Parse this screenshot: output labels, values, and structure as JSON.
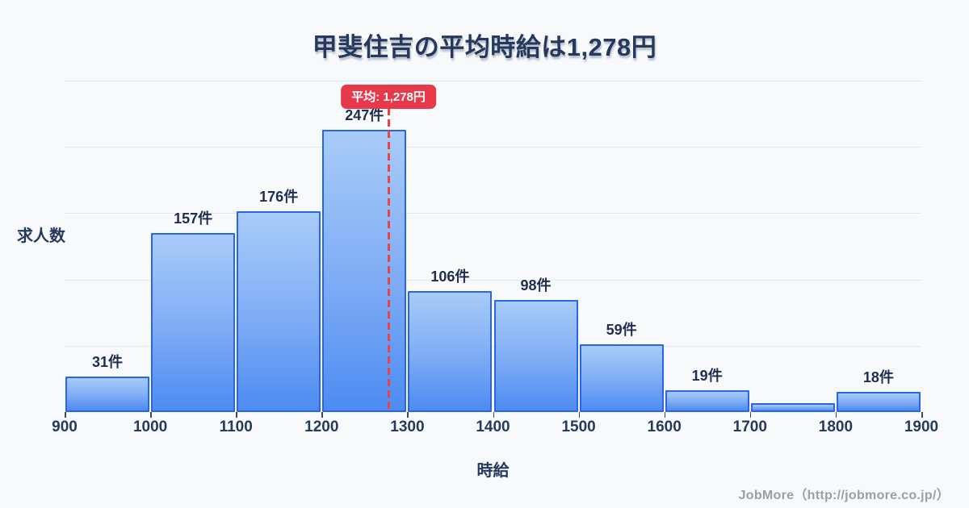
{
  "page": {
    "title": "甲斐住吉の平均時給は1,278円",
    "footer": "JobMore（http://jobmore.co.jp/）"
  },
  "chart_data": {
    "type": "bar",
    "subtype": "histogram",
    "title": "甲斐住吉の平均時給は1,278円",
    "xlabel": "時給",
    "ylabel": "求人数",
    "bin_edges": [
      900,
      1000,
      1100,
      1200,
      1300,
      1400,
      1500,
      1600,
      1700,
      1800,
      1900
    ],
    "x_tick_labels": [
      "900",
      "1000",
      "1100",
      "1200",
      "1300",
      "1400",
      "1500",
      "1600",
      "1700",
      "1800",
      "1900"
    ],
    "values": [
      31,
      157,
      176,
      247,
      106,
      98,
      59,
      19,
      8,
      18
    ],
    "bar_labels": [
      "31件",
      "157件",
      "176件",
      "247件",
      "106件",
      "98件",
      "59件",
      "19件",
      "",
      "18件"
    ],
    "ylim": [
      0,
      290
    ],
    "grid": true,
    "gridline_divisions": 5,
    "legend": null,
    "average": {
      "value": 1278,
      "label": "平均: 1,278円"
    },
    "colors": {
      "background": "#f8f9fb",
      "bar_fill_top": "#a8ccf8",
      "bar_fill_bottom": "#4c8cf2",
      "bar_border": "#2a65e8",
      "average_line": "#ef4043",
      "average_badge_bg": "#e8394a",
      "average_badge_text": "#ffffff",
      "text": "#26395c",
      "grid": "#e4e8f1",
      "footer_text": "#9aa0a8"
    }
  }
}
